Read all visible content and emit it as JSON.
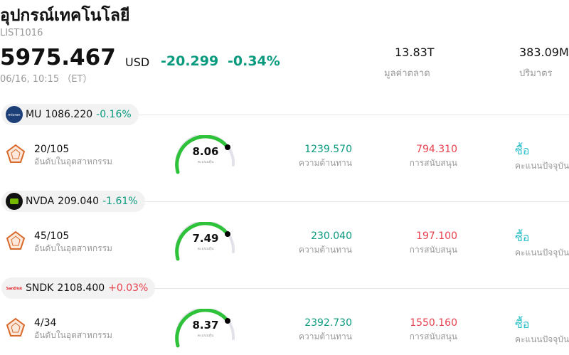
{
  "header": {
    "title": "อุปกรณ์เทคโนโลยี",
    "code": "LIST1016",
    "price": "5975.467",
    "currency": "USD",
    "change": "-20.299",
    "change_pct": "-0.34%",
    "time": "06/16, 10:15 （ET）",
    "market_cap": "13.83T",
    "market_cap_label": "มูลค่าตลาด",
    "volume": "383.09M",
    "volume_label": "ปริมาตร"
  },
  "stocks": [
    {
      "ticker": "MU",
      "price": "1086.220",
      "change": "-0.16%",
      "direction": "down",
      "rank": "20/105",
      "rank_label": "อันดับในอุตสาหกรรม",
      "score": "8.06",
      "score_label": "คะแนนหุ้น",
      "resistance": "1239.570",
      "resistance_label": "ความต้านทาน",
      "support": "794.310",
      "support_label": "การสนับสนุน",
      "action": "ซื้อ",
      "action_label": "คะแนนปัจจุบัน"
    },
    {
      "ticker": "NVDA",
      "price": "209.040",
      "change": "-1.61%",
      "direction": "down",
      "rank": "45/105",
      "rank_label": "อันดับในอุตสาหกรรม",
      "score": "7.49",
      "score_label": "คะแนนหุ้น",
      "resistance": "230.040",
      "resistance_label": "ความต้านทาน",
      "support": "197.100",
      "support_label": "การสนับสนุน",
      "action": "ซื้อ",
      "action_label": "คะแนนปัจจุบัน"
    },
    {
      "ticker": "SNDK",
      "price": "2108.400",
      "change": "+0.03%",
      "direction": "up",
      "rank": "4/34",
      "rank_label": "อันดับในอุตสาหกรรม",
      "score": "8.37",
      "score_label": "คะแนนหุ้น",
      "resistance": "2392.730",
      "resistance_label": "ความต้านทาน",
      "support": "1550.160",
      "support_label": "การสนับสนุน",
      "action": "ซื้อ",
      "action_label": "คะแนนปัจจุบัน"
    }
  ]
}
